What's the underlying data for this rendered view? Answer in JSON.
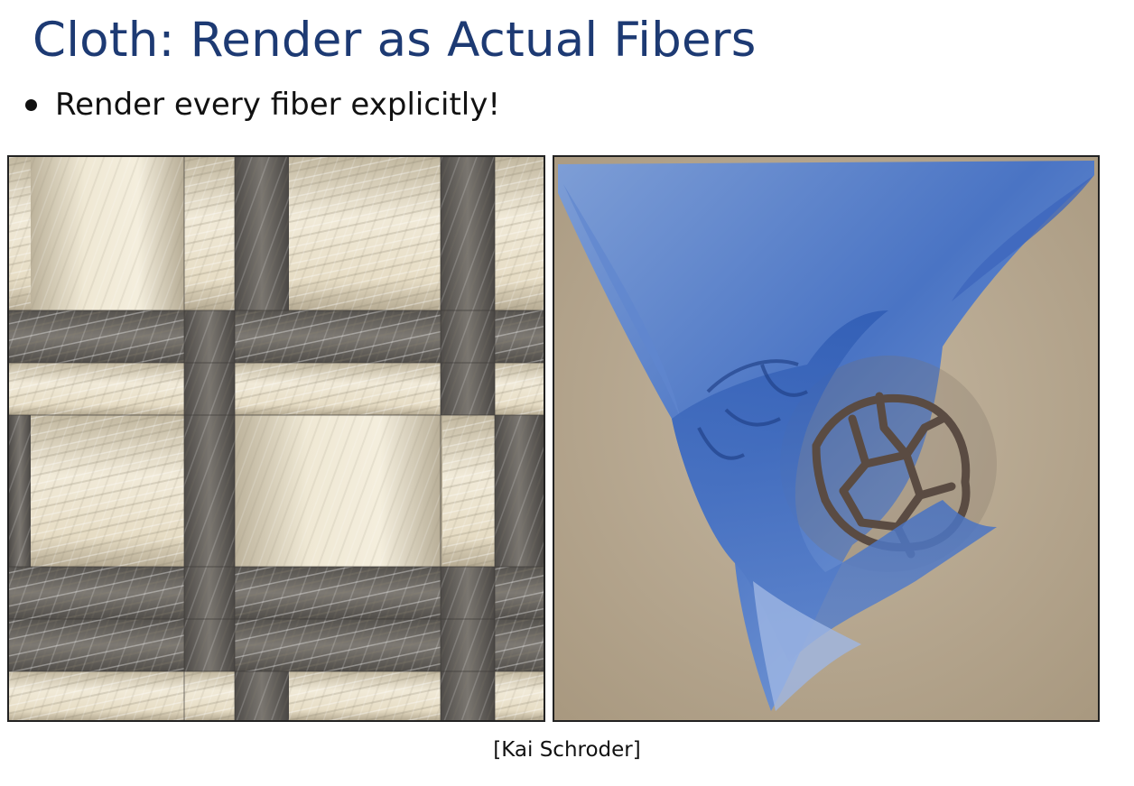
{
  "slide": {
    "title": "Cloth: Render as Actual Fibers",
    "bullets": [
      "Render every fiber explicitly!"
    ],
    "caption": "[Kai Schroder]"
  },
  "figures": {
    "left": {
      "subject": "woven-fiber-closeup"
    },
    "right": {
      "subject": "cloth-draped-over-lattice-sphere"
    }
  },
  "colors": {
    "title": "#1d3a73",
    "text": "#111111",
    "cloth_blue": "#4a74c4",
    "fiber_cream": "#e8dfc8",
    "fiber_gray": "#6d6a66",
    "background_beige": "#b9a992"
  }
}
